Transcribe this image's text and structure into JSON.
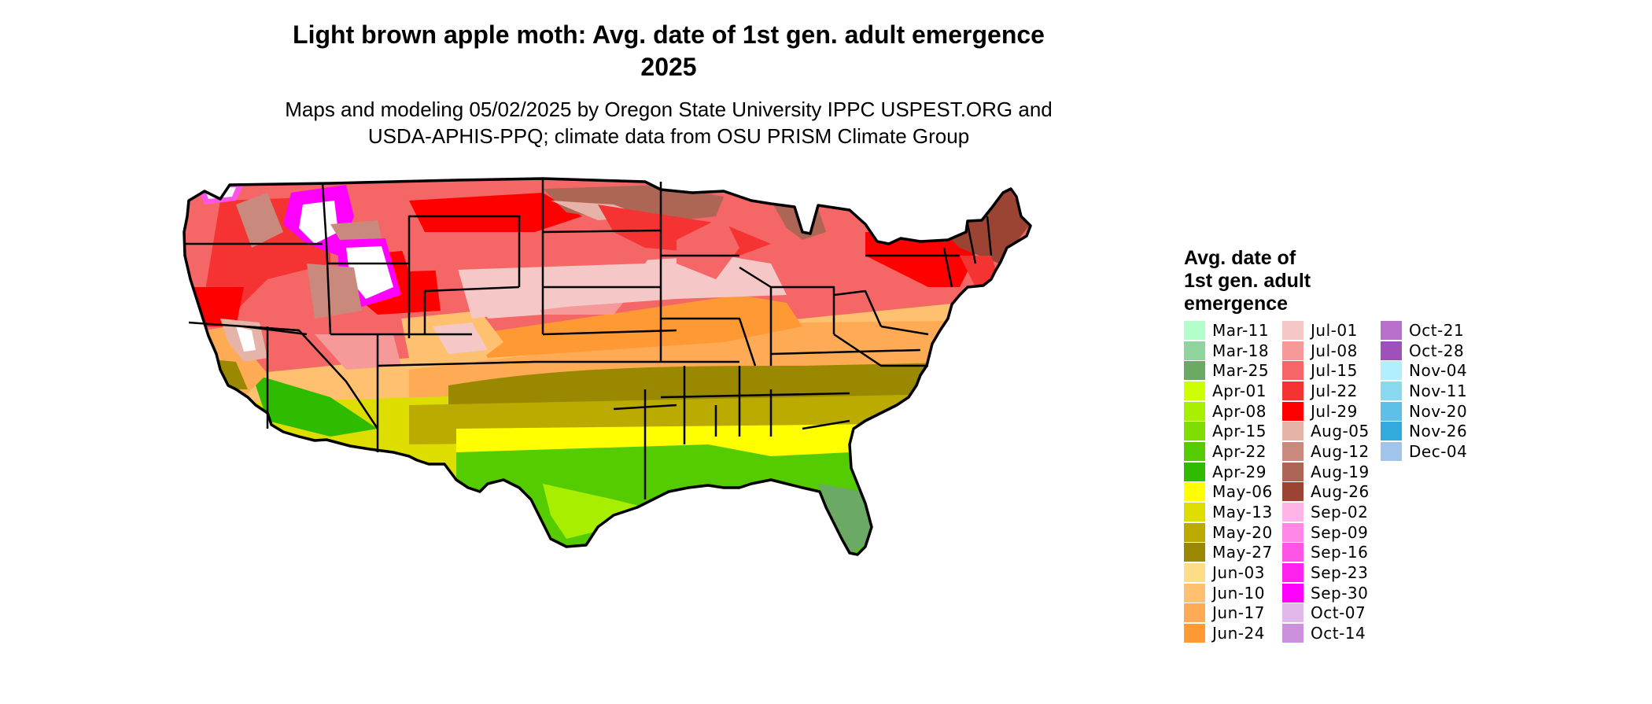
{
  "title": "Light brown apple moth: Avg. date of 1st gen. adult emergence\n2025",
  "title_lines": [
    "Light brown apple moth: Avg. date of 1st gen. adult emergence",
    "2025"
  ],
  "subtitle_lines": [
    "Maps and modeling 05/02/2025 by Oregon State University IPPC USPEST.ORG and",
    "USDA-APHIS-PPQ; climate data from OSU PRISM Climate Group"
  ],
  "map": {
    "region": "Contiguous United States",
    "legend_title": "Avg. date of\n1st gen. adult\nemergence",
    "legend": [
      {
        "label": "Mar-11",
        "color": "#b3ffcc"
      },
      {
        "label": "Mar-18",
        "color": "#8fd49c"
      },
      {
        "label": "Mar-25",
        "color": "#6aaa64"
      },
      {
        "label": "Apr-01",
        "color": "#ccff00"
      },
      {
        "label": "Apr-08",
        "color": "#a8ee00"
      },
      {
        "label": "Apr-15",
        "color": "#7fdd00"
      },
      {
        "label": "Apr-22",
        "color": "#55cc00"
      },
      {
        "label": "Apr-29",
        "color": "#2fbb00"
      },
      {
        "label": "May-06",
        "color": "#ffff00"
      },
      {
        "label": "May-13",
        "color": "#dddd00"
      },
      {
        "label": "May-20",
        "color": "#bbaa00"
      },
      {
        "label": "May-27",
        "color": "#998800"
      },
      {
        "label": "Jun-03",
        "color": "#ffdd88"
      },
      {
        "label": "Jun-10",
        "color": "#ffc070"
      },
      {
        "label": "Jun-17",
        "color": "#ffaa55"
      },
      {
        "label": "Jun-24",
        "color": "#ff9933"
      },
      {
        "label": "Jul-01",
        "color": "#f5c7c7"
      },
      {
        "label": "Jul-08",
        "color": "#f59999"
      },
      {
        "label": "Jul-15",
        "color": "#f56666"
      },
      {
        "label": "Jul-22",
        "color": "#f53333"
      },
      {
        "label": "Jul-29",
        "color": "#ff0000"
      },
      {
        "label": "Aug-05",
        "color": "#e6b3a8"
      },
      {
        "label": "Aug-12",
        "color": "#c98a7d"
      },
      {
        "label": "Aug-19",
        "color": "#ad6655"
      },
      {
        "label": "Aug-26",
        "color": "#9c4433"
      },
      {
        "label": "Sep-02",
        "color": "#ffb3e6"
      },
      {
        "label": "Sep-09",
        "color": "#ff88e6"
      },
      {
        "label": "Sep-16",
        "color": "#ff55e6"
      },
      {
        "label": "Sep-23",
        "color": "#ff22ee"
      },
      {
        "label": "Sep-30",
        "color": "#ff00ff"
      },
      {
        "label": "Oct-07",
        "color": "#e0b8ea"
      },
      {
        "label": "Oct-14",
        "color": "#cc90dd"
      },
      {
        "label": "Oct-21",
        "color": "#b870cc"
      },
      {
        "label": "Oct-28",
        "color": "#a050bb"
      },
      {
        "label": "Nov-04",
        "color": "#b3eeff"
      },
      {
        "label": "Nov-11",
        "color": "#88d8f0"
      },
      {
        "label": "Nov-20",
        "color": "#5ec0e6"
      },
      {
        "label": "Nov-26",
        "color": "#33aadd"
      },
      {
        "label": "Dec-04",
        "color": "#a0c4ea"
      }
    ]
  }
}
